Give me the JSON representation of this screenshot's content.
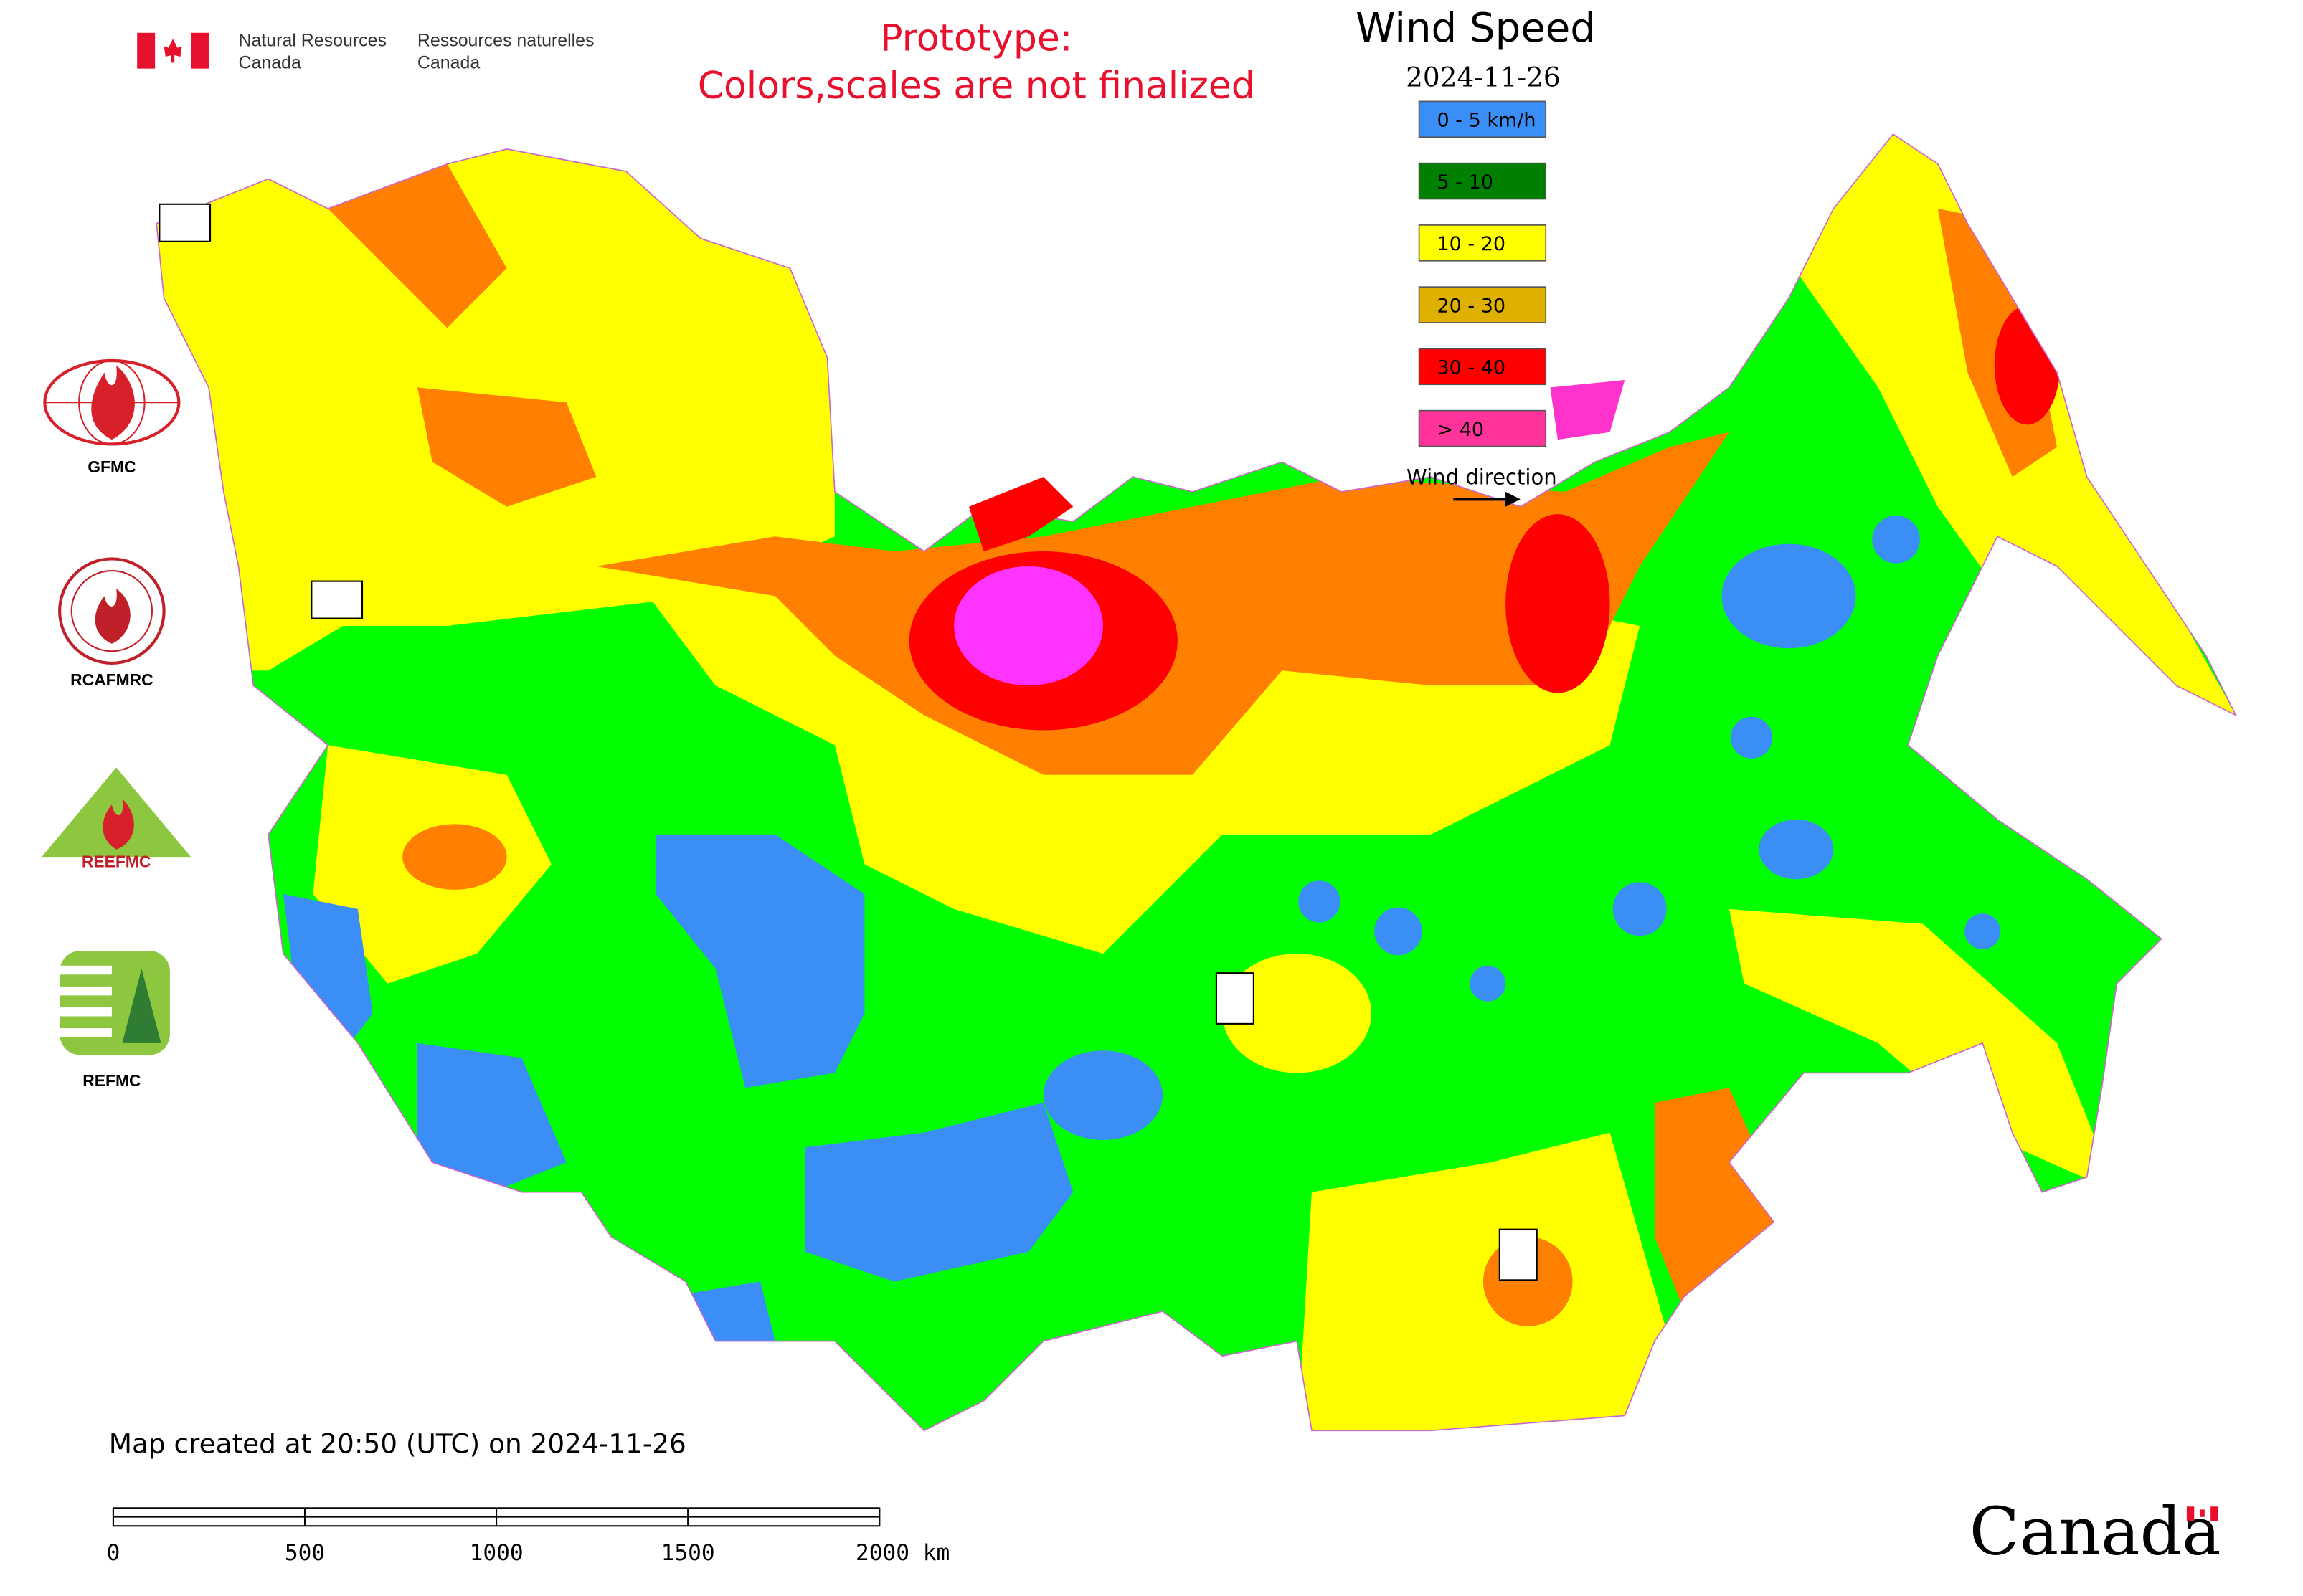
{
  "header": {
    "english": [
      "Natural Resources",
      "Canada"
    ],
    "french": [
      "Ressources naturelles",
      "Canada"
    ]
  },
  "notice": [
    "Prototype:",
    "Colors,scales are not finalized"
  ],
  "legend": {
    "title": "Wind Speed",
    "date": "2024-11-26",
    "items": [
      {
        "label": "0 - 5 km/h",
        "color": "#3a8ef6"
      },
      {
        "label": "5 - 10",
        "color": "#008000"
      },
      {
        "label": "10 - 20",
        "color": "#ffff00"
      },
      {
        "label": "20 - 30",
        "color": "#e0b000"
      },
      {
        "label": "30 - 40",
        "color": "#ff0000"
      },
      {
        "label": "> 40",
        "color": "#ff3399"
      }
    ],
    "direction": "Wind direction"
  },
  "logos": [
    "GFMC",
    "RCAFMRC",
    "REEFMC",
    "REFMC"
  ],
  "footer": {
    "created": "Map created at 20:50 (UTC) on 2024-11-26",
    "scale": [
      "0",
      "500",
      "1000",
      "1500",
      "2000 km"
    ],
    "wordmark": "Canada"
  }
}
